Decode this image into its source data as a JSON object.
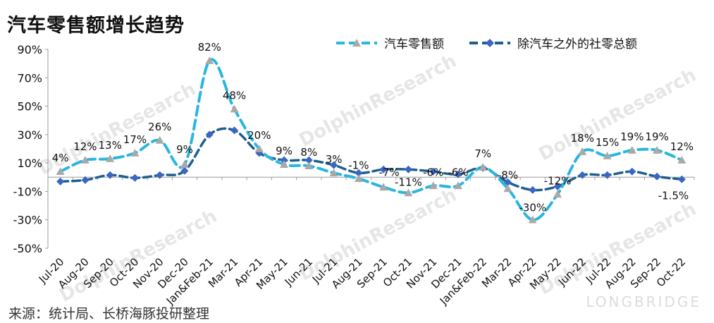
{
  "title": "汽车零售额增长趋势",
  "source": "来源：统计局、长桥海豚投研整理",
  "watermark": {
    "brand": "LONGBRIDGE",
    "name": "DolphinResearch"
  },
  "colors": {
    "series1": "#29b6e0",
    "series2": "#1f5f8f",
    "marker1": "#a9a9a9",
    "marker2": "#3a66c4"
  },
  "chart_data": {
    "type": "line",
    "categories": [
      "Jul-20",
      "Aug-20",
      "Sep-20",
      "Oct-20",
      "Nov-20",
      "Dec-20",
      "Jan&Feb-21",
      "Mar-21",
      "Apr-21",
      "May-21",
      "Jun-21",
      "Jul-21",
      "Aug-21",
      "Sep-21",
      "Oct-21",
      "Nov-21",
      "Dec-21",
      "Jan&Feb-22",
      "Mar-22",
      "Apr-22",
      "May-22",
      "Jun-22",
      "Jul-22",
      "Aug-22",
      "Sep-22",
      "Oct-22"
    ],
    "yticks": [
      "90%",
      "70%",
      "50%",
      "30%",
      "10%",
      "-10%",
      "-30%",
      "-50%"
    ],
    "ylim": [
      -50,
      90
    ],
    "series": [
      {
        "name": "汽车零售额",
        "values": [
          4,
          12,
          13,
          17,
          26,
          9,
          82,
          48,
          20,
          9,
          8,
          3,
          -1,
          -7,
          -11,
          -6,
          -6,
          7,
          -8,
          -30,
          -12,
          18,
          15,
          19,
          19,
          12
        ],
        "labels": [
          "4%",
          "12%",
          "13%",
          "17%",
          "26%",
          "9%",
          "82%",
          "48%",
          "20%",
          "9%",
          "8%",
          "3%",
          "-1%",
          "-7%",
          "-11%",
          "-6%",
          "-6%",
          "7%",
          "-8%",
          "-30%",
          "-12%",
          "18%",
          "15%",
          "19%",
          "19%",
          "12%"
        ]
      },
      {
        "name": "除汽车之外的社零总额",
        "values": [
          -3,
          -2,
          1.5,
          -0.5,
          1.5,
          4.5,
          30,
          33,
          17,
          12,
          12,
          8.5,
          3,
          5.5,
          5.5,
          4,
          2,
          6.5,
          -3.5,
          -9,
          -6.5,
          1.5,
          1.5,
          4,
          0.5,
          -1.5
        ],
        "labels": [
          null,
          null,
          null,
          null,
          null,
          null,
          null,
          null,
          null,
          null,
          null,
          null,
          null,
          null,
          null,
          null,
          null,
          null,
          null,
          null,
          null,
          null,
          null,
          null,
          null,
          "-1.5%"
        ]
      }
    ]
  }
}
